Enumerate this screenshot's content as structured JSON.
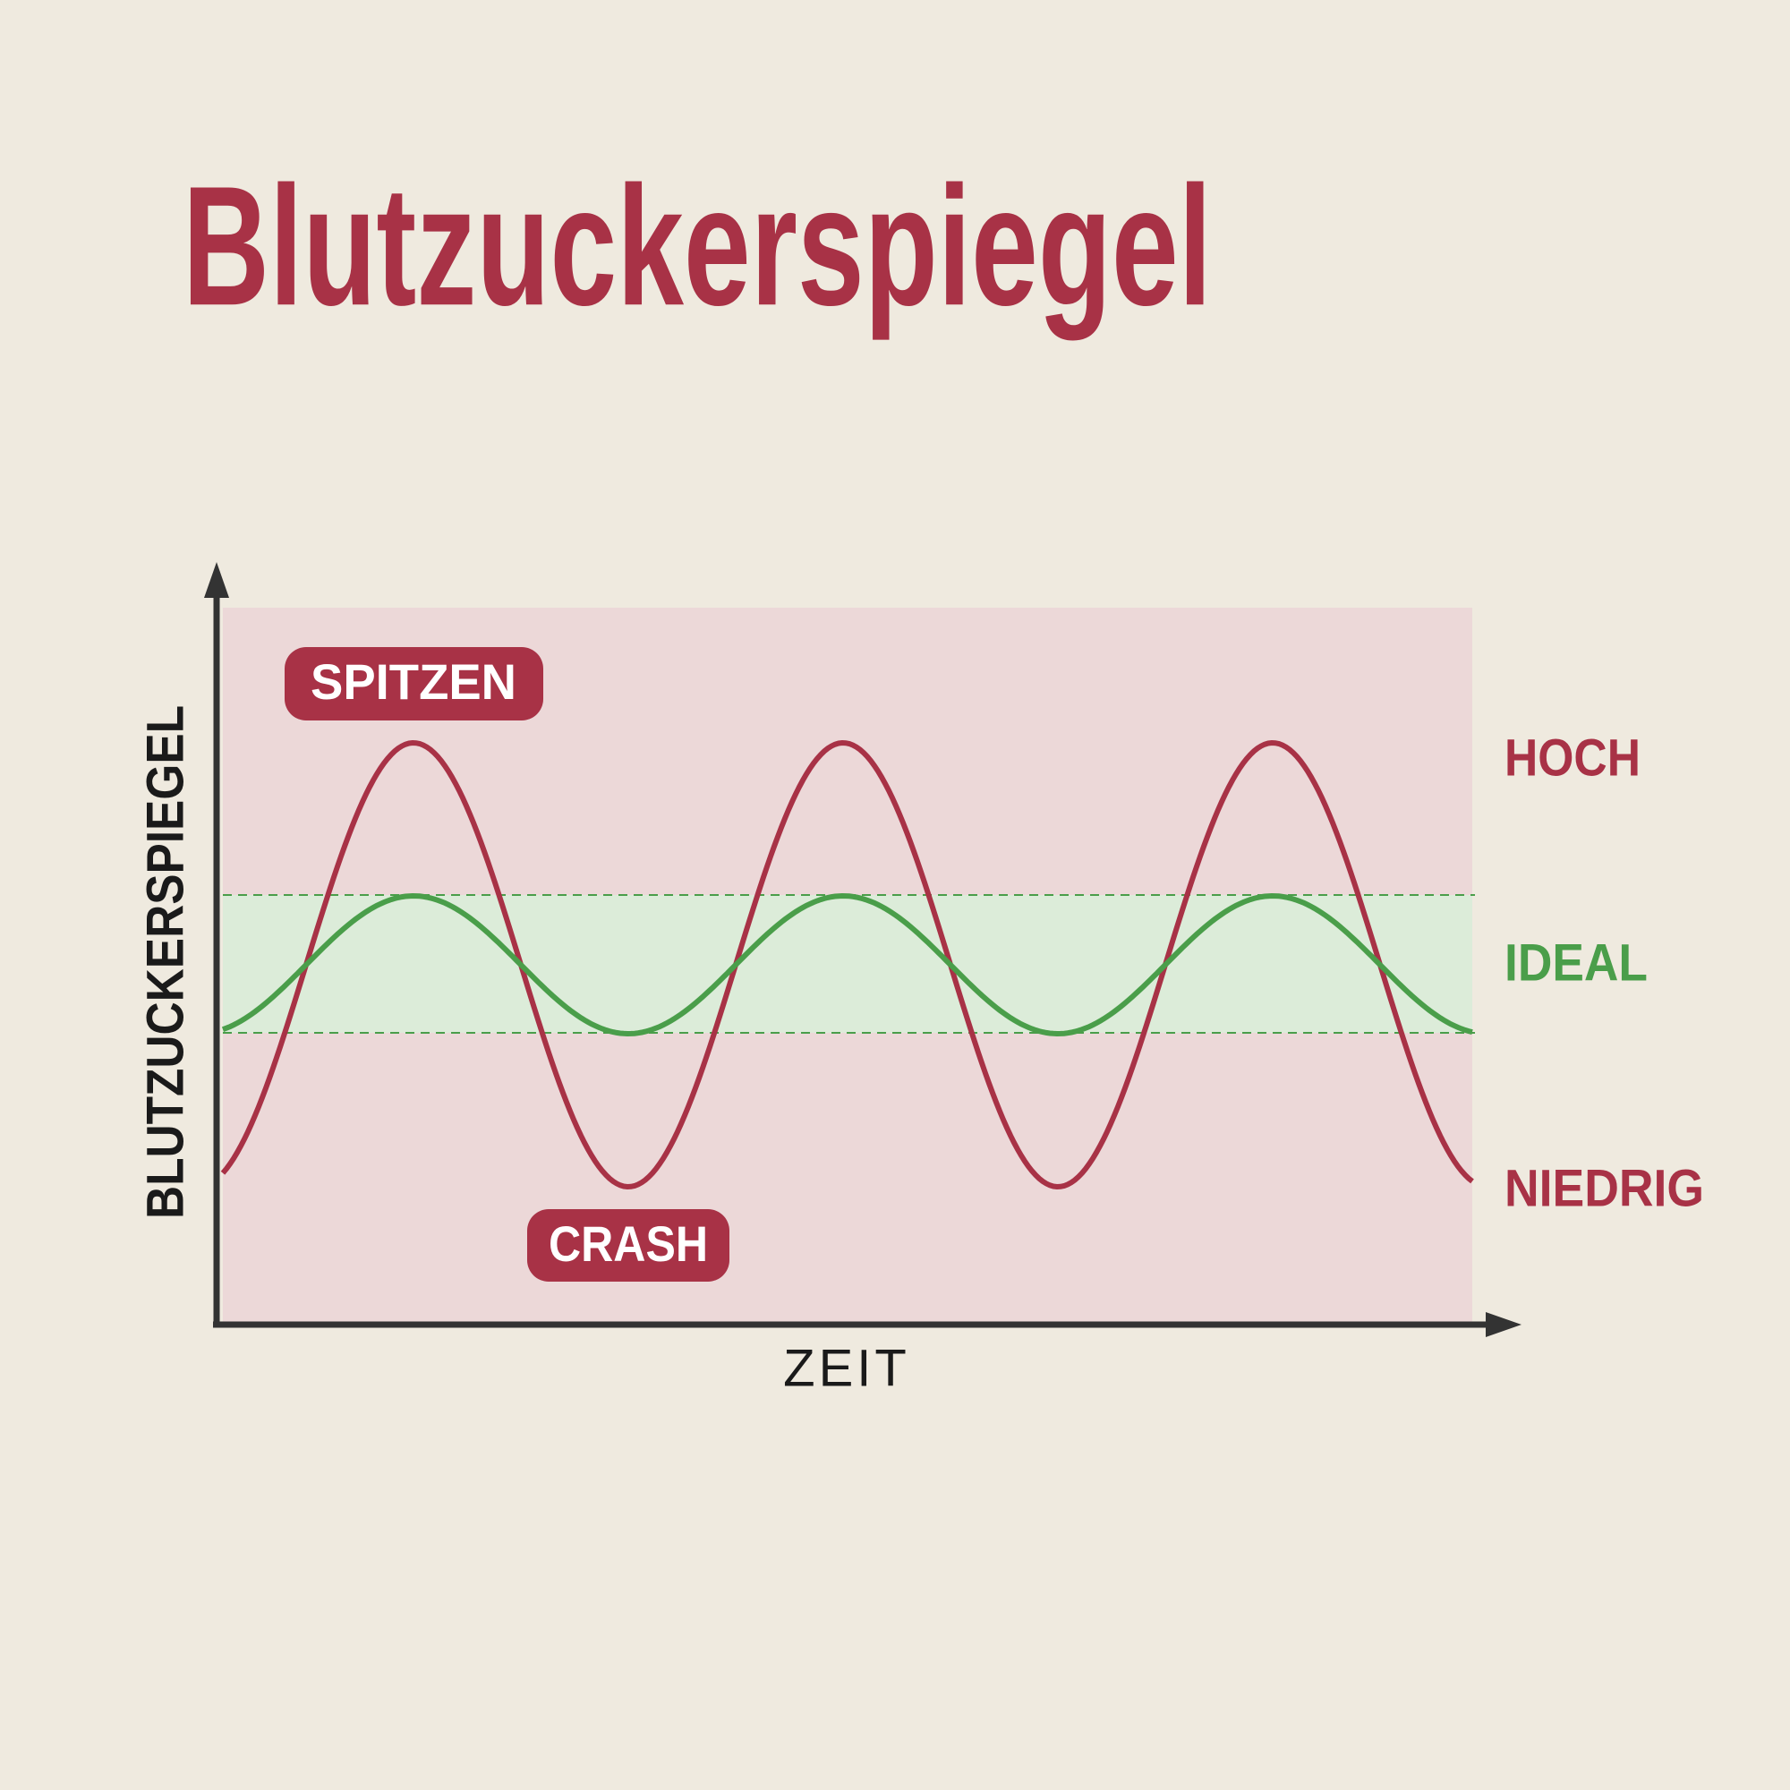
{
  "title": "Blutzuckerspiegel",
  "y_axis_label": "BLUTZUCKERSPIEGEL",
  "x_axis_label": "ZEIT",
  "annotations": {
    "peaks": "SPITZEN",
    "crash": "CRASH"
  },
  "levels": {
    "high": "HOCH",
    "ideal": "IDEAL",
    "low": "NIEDRIG"
  }
}
